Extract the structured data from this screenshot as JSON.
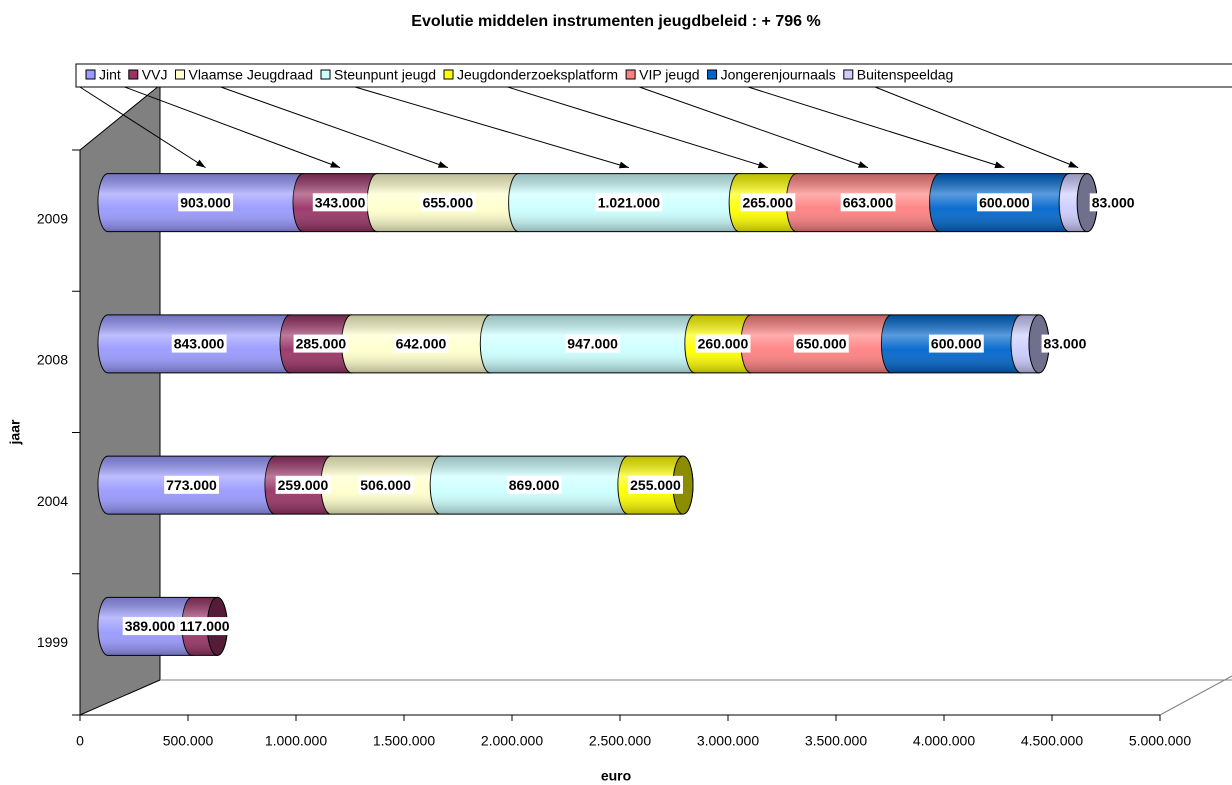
{
  "chart_data": {
    "type": "bar",
    "orientation": "horizontal",
    "stacked": true,
    "shape": "cylinder",
    "title": "Evolutie middelen instrumenten jeugdbeleid : + 796 %",
    "xlabel": "euro",
    "ylabel": "jaar",
    "categories": [
      "1999",
      "2004",
      "2008",
      "2009"
    ],
    "xlim": [
      0,
      5000000
    ],
    "xticks": [
      0,
      {
        "value": 500000,
        "label": "500.000"
      },
      {
        "value": 1000000,
        "label": "1.000.000"
      },
      {
        "value": 1500000,
        "label": "1.500.000"
      },
      {
        "value": 2000000,
        "label": "2.000.000"
      },
      {
        "value": 2500000,
        "label": "2.500.000"
      },
      {
        "value": 3000000,
        "label": "3.000.000"
      },
      {
        "value": 3500000,
        "label": "3.500.000"
      },
      {
        "value": 4000000,
        "label": "4.000.000"
      },
      {
        "value": 4500000,
        "label": "4.500.000"
      },
      {
        "value": 5000000,
        "label": "5.000.000"
      }
    ],
    "legend": "top",
    "series": [
      {
        "name": "Jint",
        "color": "#9999ff",
        "values": [
          389000,
          773000,
          843000,
          903000
        ],
        "value_labels": [
          "389.000",
          "773.000",
          "843.000",
          "903.000"
        ]
      },
      {
        "name": "VVJ",
        "color": "#993366",
        "values": [
          117000,
          259000,
          285000,
          343000
        ],
        "value_labels": [
          "117.000",
          "259.000",
          "285.000",
          "343.000"
        ]
      },
      {
        "name": "Vlaamse Jeugdraad",
        "color": "#ffffcc",
        "values": [
          null,
          506000,
          642000,
          655000
        ],
        "value_labels": [
          null,
          "506.000",
          "642.000",
          "655.000"
        ]
      },
      {
        "name": "Steunpunt jeugd",
        "color": "#ccffff",
        "values": [
          null,
          869000,
          947000,
          1021000
        ],
        "value_labels": [
          null,
          "869.000",
          "947.000",
          "1.021.000"
        ]
      },
      {
        "name": "Jeugdonderzoeksplatform",
        "color": "#ffff00",
        "values": [
          null,
          255000,
          260000,
          265000
        ],
        "value_labels": [
          null,
          "255.000",
          "260.000",
          "265.000"
        ]
      },
      {
        "name": "VIP jeugd",
        "color": "#ff8080",
        "values": [
          null,
          null,
          650000,
          663000
        ],
        "value_labels": [
          null,
          null,
          "650.000",
          "663.000"
        ]
      },
      {
        "name": "Jongerenjournaals",
        "color": "#0066cc",
        "values": [
          null,
          null,
          600000,
          600000
        ],
        "value_labels": [
          null,
          null,
          "600.000",
          "600.000"
        ]
      },
      {
        "name": "Buitenspeeldag",
        "color": "#ccccff",
        "values": [
          null,
          null,
          83000,
          83000
        ],
        "value_labels": [
          null,
          null,
          "83.000",
          "83.000"
        ]
      }
    ]
  }
}
